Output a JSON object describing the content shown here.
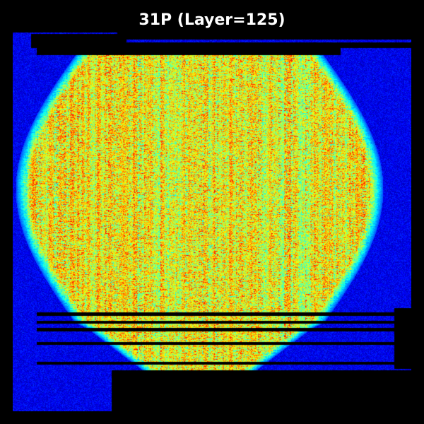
{
  "title": "31P (Layer=125)",
  "colormap": "jet",
  "colors": {
    "background": "#000000",
    "title_text": "#ffffff",
    "low": "#00007f",
    "mid": "#7fff7f",
    "high": "#7f0000"
  }
}
